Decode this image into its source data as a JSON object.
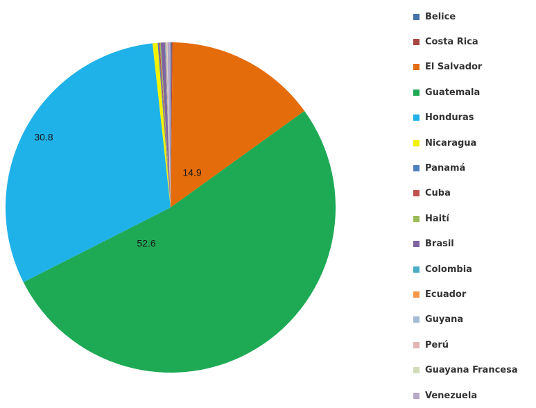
{
  "chart_data": {
    "type": "pie",
    "title": "",
    "legend_position": "right",
    "categories": [
      "Belice",
      "Costa Rica",
      "El Salvador",
      "Guatemala",
      "Honduras",
      "Nicaragua",
      "Panamá",
      "Cuba",
      "Haití",
      "Brasil",
      "Colombia",
      "Ecuador",
      "Guyana",
      "Perú",
      "Guayana Francesa",
      "Venezuela"
    ],
    "values": [
      0.1,
      0.1,
      14.9,
      52.6,
      30.8,
      0.5,
      0.1,
      0.1,
      0.1,
      0.4,
      0.05,
      0.05,
      0.05,
      0.05,
      0.05,
      0.3
    ],
    "data_labels": [
      "",
      "",
      "14.9",
      "52.6",
      "30.8",
      "",
      "",
      "",
      "",
      "",
      "",
      "",
      "",
      "",
      "",
      ""
    ],
    "colors": [
      "#4572a7",
      "#aa4643",
      "#e46c0a",
      "#1eaa55",
      "#1fb2e8",
      "#f2f200",
      "#4f81bd",
      "#c0504d",
      "#9bbb59",
      "#8064a2",
      "#4bacc6",
      "#f79646",
      "#a5b9d9",
      "#e4b3b3",
      "#d3dcb8",
      "#b7a9c9"
    ]
  }
}
